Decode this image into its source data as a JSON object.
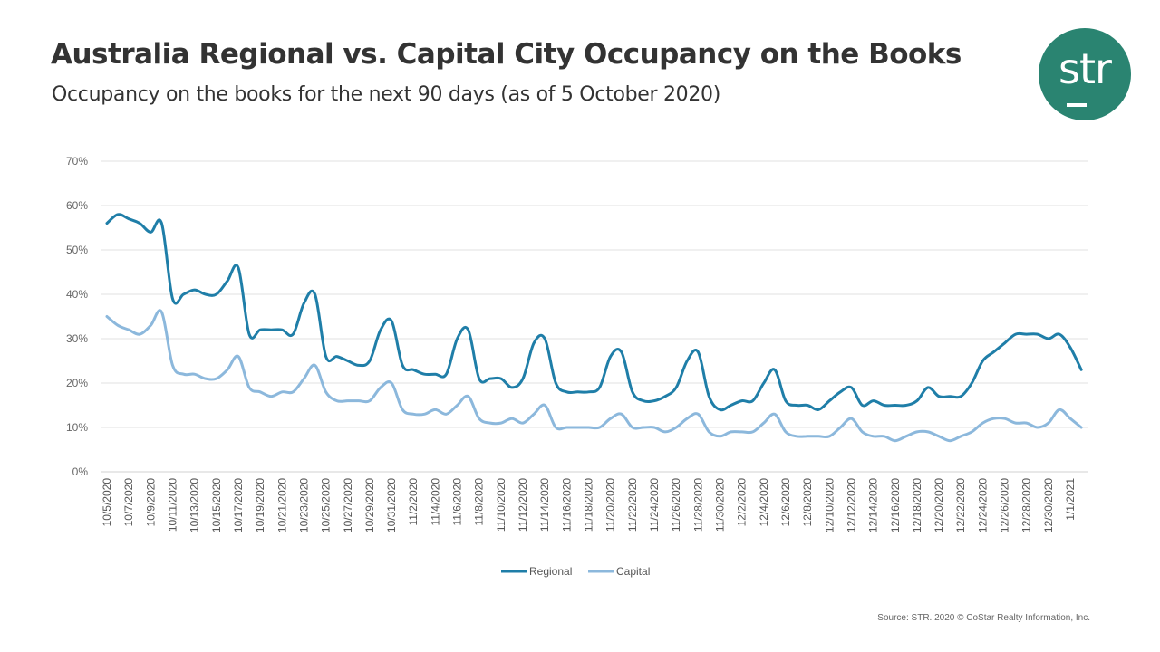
{
  "header": {
    "title": "Australia Regional vs. Capital City Occupancy on the Books",
    "subtitle": "Occupancy on the books for the next 90 days (as of 5 October 2020)"
  },
  "logo": {
    "text": "str",
    "color": "#2a8471"
  },
  "source": "Source: STR. 2020 © CoStar Realty Information, Inc.",
  "chart_data": {
    "type": "line",
    "title": "Australia Regional vs. Capital City Occupancy on the Books",
    "xlabel": "",
    "ylabel": "",
    "ylim": [
      0,
      70
    ],
    "yticks": [
      "0%",
      "10%",
      "20%",
      "30%",
      "40%",
      "50%",
      "60%",
      "70%"
    ],
    "grid": true,
    "legend": "bottom",
    "x": [
      "10/5/2020",
      "10/6/2020",
      "10/7/2020",
      "10/8/2020",
      "10/9/2020",
      "10/10/2020",
      "10/11/2020",
      "10/12/2020",
      "10/13/2020",
      "10/14/2020",
      "10/15/2020",
      "10/16/2020",
      "10/17/2020",
      "10/18/2020",
      "10/19/2020",
      "10/20/2020",
      "10/21/2020",
      "10/22/2020",
      "10/23/2020",
      "10/24/2020",
      "10/25/2020",
      "10/26/2020",
      "10/27/2020",
      "10/28/2020",
      "10/29/2020",
      "10/30/2020",
      "10/31/2020",
      "11/1/2020",
      "11/2/2020",
      "11/3/2020",
      "11/4/2020",
      "11/5/2020",
      "11/6/2020",
      "11/7/2020",
      "11/8/2020",
      "11/9/2020",
      "11/10/2020",
      "11/11/2020",
      "11/12/2020",
      "11/13/2020",
      "11/14/2020",
      "11/15/2020",
      "11/16/2020",
      "11/17/2020",
      "11/18/2020",
      "11/19/2020",
      "11/20/2020",
      "11/21/2020",
      "11/22/2020",
      "11/23/2020",
      "11/24/2020",
      "11/25/2020",
      "11/26/2020",
      "11/27/2020",
      "11/28/2020",
      "11/29/2020",
      "11/30/2020",
      "12/1/2020",
      "12/2/2020",
      "12/3/2020",
      "12/4/2020",
      "12/5/2020",
      "12/6/2020",
      "12/7/2020",
      "12/8/2020",
      "12/9/2020",
      "12/10/2020",
      "12/11/2020",
      "12/12/2020",
      "12/13/2020",
      "12/14/2020",
      "12/15/2020",
      "12/16/2020",
      "12/17/2020",
      "12/18/2020",
      "12/19/2020",
      "12/20/2020",
      "12/21/2020",
      "12/22/2020",
      "12/23/2020",
      "12/24/2020",
      "12/25/2020",
      "12/26/2020",
      "12/27/2020",
      "12/28/2020",
      "12/29/2020",
      "12/30/2020",
      "12/31/2020",
      "1/1/2021",
      "1/2/2021"
    ],
    "tick_every": 2,
    "series": [
      {
        "name": "Regional",
        "color": "#1f7ea8",
        "values": [
          56,
          58,
          57,
          56,
          54,
          56,
          39,
          40,
          41,
          40,
          40,
          43,
          46,
          31,
          32,
          32,
          32,
          31,
          38,
          40,
          26,
          26,
          25,
          24,
          25,
          32,
          34,
          24,
          23,
          22,
          22,
          22,
          30,
          32,
          21,
          21,
          21,
          19,
          21,
          29,
          30,
          20,
          18,
          18,
          18,
          19,
          26,
          27,
          18,
          16,
          16,
          17,
          19,
          25,
          27,
          17,
          14,
          15,
          16,
          16,
          20,
          23,
          16,
          15,
          15,
          14,
          16,
          18,
          19,
          15,
          16,
          15,
          15,
          15,
          16,
          19,
          17,
          17,
          17,
          20,
          25,
          27,
          29,
          31,
          31,
          31,
          30,
          31,
          28,
          23
        ]
      },
      {
        "name": "Capital",
        "color": "#8cb8dc",
        "values": [
          35,
          33,
          32,
          31,
          33,
          36,
          24,
          22,
          22,
          21,
          21,
          23,
          26,
          19,
          18,
          17,
          18,
          18,
          21,
          24,
          18,
          16,
          16,
          16,
          16,
          19,
          20,
          14,
          13,
          13,
          14,
          13,
          15,
          17,
          12,
          11,
          11,
          12,
          11,
          13,
          15,
          10,
          10,
          10,
          10,
          10,
          12,
          13,
          10,
          10,
          10,
          9,
          10,
          12,
          13,
          9,
          8,
          9,
          9,
          9,
          11,
          13,
          9,
          8,
          8,
          8,
          8,
          10,
          12,
          9,
          8,
          8,
          7,
          8,
          9,
          9,
          8,
          7,
          8,
          9,
          11,
          12,
          12,
          11,
          11,
          10,
          11,
          14,
          12,
          10
        ]
      }
    ]
  }
}
